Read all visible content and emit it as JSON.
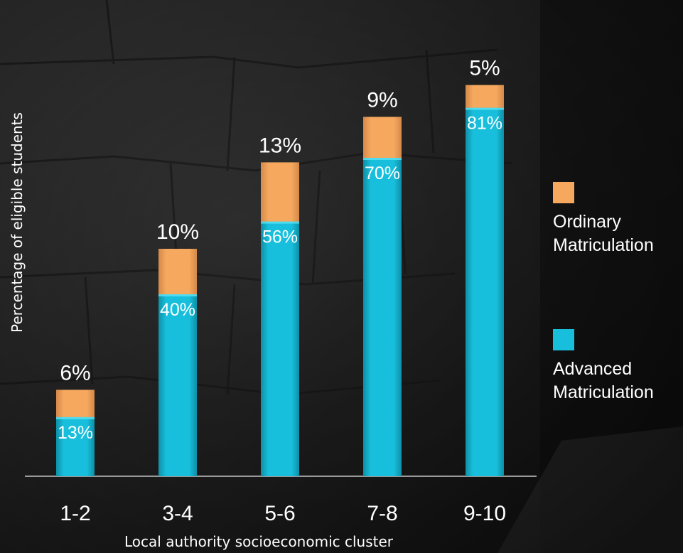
{
  "colors": {
    "advanced": "#18bfdc",
    "ordinary": "#f5a85e",
    "text": "#ffffff",
    "axis": "#9a9a9a"
  },
  "legend": {
    "ordinary": "Ordinary Matriculation",
    "advanced": "Advanced Matriculation"
  },
  "chart_data": {
    "type": "bar",
    "stacked": true,
    "categories": [
      "1-2",
      "3-4",
      "5-6",
      "7-8",
      "9-10"
    ],
    "series": [
      {
        "name": "Advanced Matriculation",
        "values": [
          13,
          40,
          56,
          70,
          81
        ],
        "labels": [
          "13%",
          "40%",
          "56%",
          "70%",
          "81%"
        ]
      },
      {
        "name": "Ordinary Matriculation",
        "values": [
          6,
          10,
          13,
          9,
          5
        ],
        "labels": [
          "6%",
          "10%",
          "13%",
          "9%",
          "5%"
        ]
      }
    ],
    "xlabel": "Local authority socioeconomic cluster",
    "ylabel": "Percentage of eligible students",
    "ylim": [
      0,
      100
    ],
    "grid": false,
    "legend_position": "right"
  }
}
